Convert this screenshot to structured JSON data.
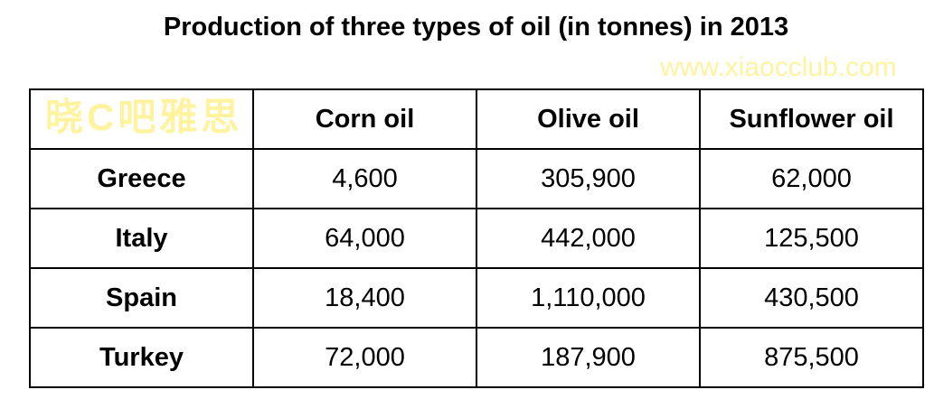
{
  "chart_data": {
    "type": "table",
    "title": "Production of three types of oil (in tonnes) in 2013",
    "columns": [
      "",
      "Corn oil",
      "Olive oil",
      "Sunflower oil"
    ],
    "rows": [
      {
        "label": "Greece",
        "values": [
          "4,600",
          "305,900",
          "62,000"
        ]
      },
      {
        "label": "Italy",
        "values": [
          "64,000",
          "442,000",
          "125,500"
        ]
      },
      {
        "label": "Spain",
        "values": [
          "18,400",
          "1,110,000",
          "430,500"
        ]
      },
      {
        "label": "Turkey",
        "values": [
          "72,000",
          "187,900",
          "875,500"
        ]
      }
    ]
  },
  "watermark": {
    "text": "晓C吧雅思",
    "url": "www.xiaocclub.com",
    "color": "#fff3a0"
  }
}
